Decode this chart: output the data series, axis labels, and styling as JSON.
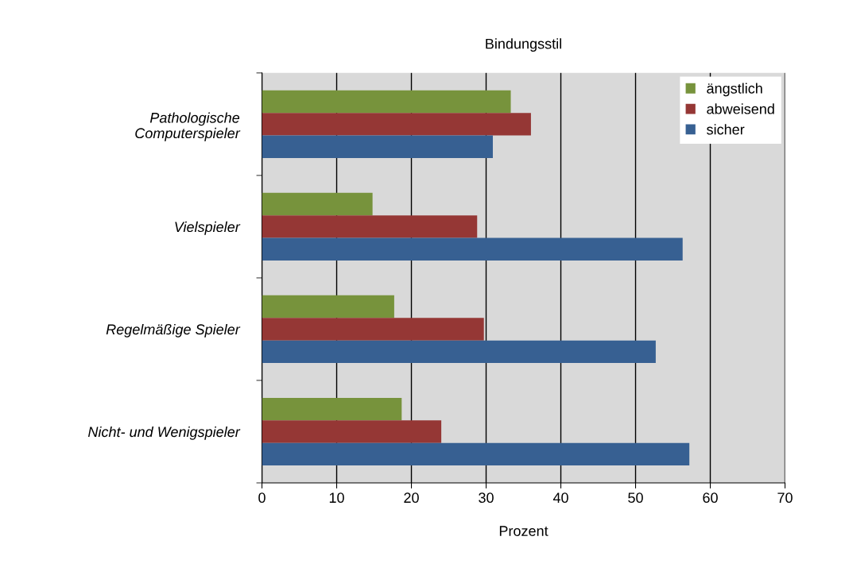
{
  "chart_data": {
    "type": "bar",
    "orientation": "horizontal",
    "title": "Bindungsstil",
    "xlabel": "Prozent",
    "categories": [
      "Pathologische\nComputerspieler",
      "Vielspieler",
      "Regelmäßige Spieler",
      "Nicht- und Wenigspieler"
    ],
    "series": [
      {
        "name": "ängstlich",
        "color": "#77933c",
        "values": [
          33.3,
          14.8,
          17.7,
          18.7
        ]
      },
      {
        "name": "abweisend",
        "color": "#953735",
        "values": [
          36.0,
          28.8,
          29.7,
          24.0
        ]
      },
      {
        "name": "sicher",
        "color": "#376092",
        "values": [
          30.9,
          56.3,
          52.7,
          57.2
        ]
      }
    ],
    "xlim": [
      0,
      70
    ],
    "xticks": [
      0,
      10,
      20,
      30,
      40,
      50,
      60,
      70
    ],
    "grid": "x",
    "legend": "top right"
  }
}
